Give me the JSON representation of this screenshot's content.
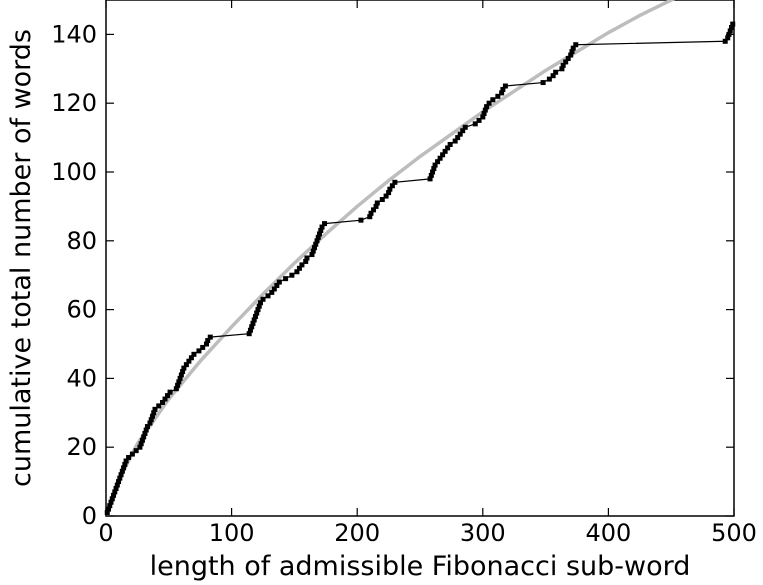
{
  "chart_data": {
    "type": "scatter",
    "title": "",
    "xlabel": "length of admissible Fibonacci sub-word",
    "ylabel": "cumulative total number of words",
    "xlim": [
      0,
      500
    ],
    "ylim": [
      0,
      150
    ],
    "xticks": [
      0,
      100,
      200,
      300,
      400,
      500
    ],
    "yticks": [
      0,
      20,
      40,
      60,
      80,
      100,
      120,
      140
    ],
    "xtick_labels": [
      "0",
      "100",
      "200",
      "300",
      "400",
      "500"
    ],
    "ytick_labels": [
      "0",
      "20",
      "40",
      "60",
      "80",
      "100",
      "120",
      "140"
    ],
    "grid": false,
    "legend": "none",
    "colors": {
      "data": "#000000",
      "fit": "#bdbdbd"
    },
    "series": [
      {
        "style": "line-with-square-markers",
        "color": "#000000",
        "points": [
          [
            1,
            1
          ],
          [
            2,
            2
          ],
          [
            3,
            3
          ],
          [
            4,
            4
          ],
          [
            5,
            5
          ],
          [
            6,
            6
          ],
          [
            7,
            7
          ],
          [
            8,
            8
          ],
          [
            9,
            9
          ],
          [
            10,
            10
          ],
          [
            11,
            11
          ],
          [
            12,
            12
          ],
          [
            13,
            13
          ],
          [
            14,
            14
          ],
          [
            15,
            15
          ],
          [
            16,
            16
          ],
          [
            18,
            17
          ],
          [
            21,
            18
          ],
          [
            24,
            19
          ],
          [
            27,
            20
          ],
          [
            28,
            21
          ],
          [
            29,
            22
          ],
          [
            30,
            23
          ],
          [
            31,
            24
          ],
          [
            32,
            25
          ],
          [
            33,
            26
          ],
          [
            35,
            27
          ],
          [
            36,
            28
          ],
          [
            37,
            29
          ],
          [
            38,
            30
          ],
          [
            39,
            31
          ],
          [
            42,
            32
          ],
          [
            45,
            33
          ],
          [
            47,
            34
          ],
          [
            49,
            35
          ],
          [
            51,
            36
          ],
          [
            56,
            37
          ],
          [
            57,
            38
          ],
          [
            58,
            39
          ],
          [
            59,
            40
          ],
          [
            60,
            41
          ],
          [
            61,
            42
          ],
          [
            62,
            43
          ],
          [
            64,
            44
          ],
          [
            66,
            45
          ],
          [
            68,
            46
          ],
          [
            70,
            47
          ],
          [
            74,
            48
          ],
          [
            77,
            49
          ],
          [
            80,
            50
          ],
          [
            81,
            51
          ],
          [
            83,
            52
          ],
          [
            114,
            53
          ],
          [
            115,
            54
          ],
          [
            116,
            55
          ],
          [
            117,
            56
          ],
          [
            118,
            57
          ],
          [
            119,
            58
          ],
          [
            120,
            59
          ],
          [
            121,
            60
          ],
          [
            122,
            61
          ],
          [
            123,
            62
          ],
          [
            125,
            63
          ],
          [
            129,
            64
          ],
          [
            132,
            65
          ],
          [
            134,
            66
          ],
          [
            136,
            67
          ],
          [
            138,
            68
          ],
          [
            143,
            69
          ],
          [
            148,
            70
          ],
          [
            152,
            71
          ],
          [
            154,
            72
          ],
          [
            156,
            73
          ],
          [
            159,
            74
          ],
          [
            160,
            75
          ],
          [
            164,
            76
          ],
          [
            165,
            77
          ],
          [
            166,
            78
          ],
          [
            167,
            79
          ],
          [
            168,
            80
          ],
          [
            169,
            81
          ],
          [
            170,
            82
          ],
          [
            171,
            83
          ],
          [
            172,
            84
          ],
          [
            174,
            85
          ],
          [
            203,
            86
          ],
          [
            210,
            87
          ],
          [
            211,
            88
          ],
          [
            213,
            89
          ],
          [
            215,
            90
          ],
          [
            216,
            91
          ],
          [
            220,
            92
          ],
          [
            223,
            93
          ],
          [
            225,
            94
          ],
          [
            226,
            95
          ],
          [
            228,
            96
          ],
          [
            230,
            97
          ],
          [
            258,
            98
          ],
          [
            259,
            99
          ],
          [
            260,
            100
          ],
          [
            261,
            101
          ],
          [
            262,
            102
          ],
          [
            264,
            103
          ],
          [
            266,
            104
          ],
          [
            268,
            105
          ],
          [
            270,
            106
          ],
          [
            272,
            107
          ],
          [
            274,
            108
          ],
          [
            278,
            109
          ],
          [
            280,
            110
          ],
          [
            282,
            111
          ],
          [
            284,
            112
          ],
          [
            286,
            113
          ],
          [
            294,
            114
          ],
          [
            297,
            115
          ],
          [
            300,
            116
          ],
          [
            301,
            117
          ],
          [
            302,
            118
          ],
          [
            303,
            119
          ],
          [
            305,
            120
          ],
          [
            308,
            121
          ],
          [
            312,
            122
          ],
          [
            315,
            123
          ],
          [
            316,
            124
          ],
          [
            318,
            125
          ],
          [
            348,
            126
          ],
          [
            353,
            127
          ],
          [
            356,
            128
          ],
          [
            358,
            129
          ],
          [
            363,
            130
          ],
          [
            364,
            131
          ],
          [
            366,
            132
          ],
          [
            368,
            133
          ],
          [
            370,
            134
          ],
          [
            371,
            135
          ],
          [
            372,
            136
          ],
          [
            374,
            137
          ],
          [
            493,
            138
          ],
          [
            495,
            139
          ],
          [
            496,
            140
          ],
          [
            497,
            141
          ],
          [
            498,
            142
          ],
          [
            499,
            143
          ]
        ]
      },
      {
        "style": "smooth-curve",
        "color": "#bdbdbd",
        "points": [
          [
            0,
            0
          ],
          [
            10,
            10.5
          ],
          [
            25,
            21
          ],
          [
            50,
            34
          ],
          [
            75,
            45
          ],
          [
            100,
            55
          ],
          [
            125,
            64.5
          ],
          [
            150,
            73.5
          ],
          [
            175,
            82
          ],
          [
            200,
            90
          ],
          [
            225,
            97.5
          ],
          [
            250,
            104.5
          ],
          [
            275,
            111
          ],
          [
            300,
            117.5
          ],
          [
            325,
            123.5
          ],
          [
            350,
            129.5
          ],
          [
            375,
            135
          ],
          [
            400,
            140.5
          ],
          [
            425,
            145.5
          ],
          [
            450,
            150
          ],
          [
            475,
            154.5
          ],
          [
            500,
            159
          ]
        ]
      }
    ]
  }
}
